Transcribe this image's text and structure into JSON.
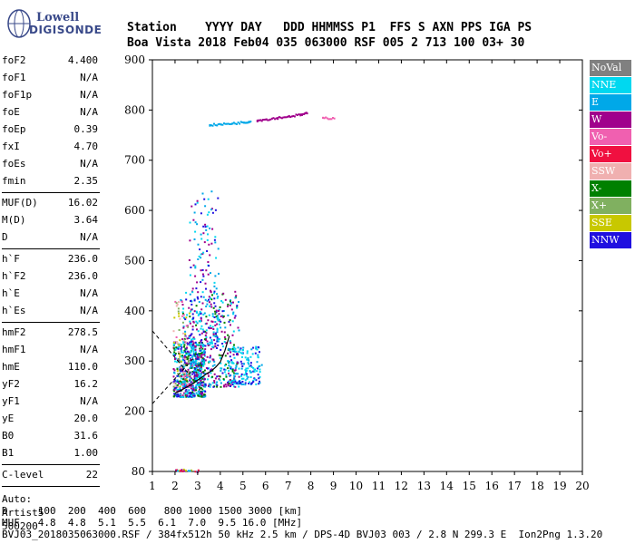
{
  "logo": {
    "line1": "Lowell",
    "line2": "DIGISONDE"
  },
  "header": {
    "line1": "Station    YYYY DAY   DDD HHMMSS P1  FFS S AXN PPS IGA PS",
    "line2": "Boa Vista 2018 Feb04 035 063000 RSF 005 2 713 100 03+ 30"
  },
  "params": [
    {
      "k": "foF2",
      "v": "4.400"
    },
    {
      "k": "foF1",
      "v": "N/A"
    },
    {
      "k": "foF1p",
      "v": "N/A"
    },
    {
      "k": "foE",
      "v": "N/A"
    },
    {
      "k": "foEp",
      "v": "0.39"
    },
    {
      "k": "fxI",
      "v": "4.70"
    },
    {
      "k": "foEs",
      "v": "N/A"
    },
    {
      "k": "fmin",
      "v": "2.35"
    },
    {
      "k": "MUF(D)",
      "v": "16.02",
      "sep": true
    },
    {
      "k": "M(D)",
      "v": "3.64"
    },
    {
      "k": "D",
      "v": "N/A"
    },
    {
      "k": "h`F",
      "v": "236.0",
      "sep": true
    },
    {
      "k": "h`F2",
      "v": "236.0"
    },
    {
      "k": "h`E",
      "v": "N/A"
    },
    {
      "k": "h`Es",
      "v": "N/A"
    },
    {
      "k": "hmF2",
      "v": "278.5",
      "sep": true
    },
    {
      "k": "hmF1",
      "v": "N/A"
    },
    {
      "k": "hmE",
      "v": "110.0"
    },
    {
      "k": "yF2",
      "v": "16.2"
    },
    {
      "k": "yF1",
      "v": "N/A"
    },
    {
      "k": "yE",
      "v": "20.0"
    },
    {
      "k": "B0",
      "v": "31.6"
    },
    {
      "k": "B1",
      "v": "1.00"
    },
    {
      "k": "C-level",
      "v": "22",
      "sep": true
    }
  ],
  "auto": {
    "line1": "Auto:",
    "line2": "Artist5",
    "line3": "500200"
  },
  "legend": [
    {
      "label": "NoVal",
      "color": "#808080"
    },
    {
      "label": "NNE",
      "color": "#00d8f0"
    },
    {
      "label": "E",
      "color": "#00a8e8"
    },
    {
      "label": "W",
      "color": "#a0008c"
    },
    {
      "label": "Vo-",
      "color": "#f060b0"
    },
    {
      "label": "Vo+",
      "color": "#f01040"
    },
    {
      "label": "SSW",
      "color": "#f0b0b0"
    },
    {
      "label": "X-",
      "color": "#008000"
    },
    {
      "label": "X+",
      "color": "#80b060"
    },
    {
      "label": "SSE",
      "color": "#c8c800"
    },
    {
      "label": "NNW",
      "color": "#2010e0"
    }
  ],
  "footer": {
    "line1": "D     100  200  400  600   800 1000 1500 3000 [km]",
    "line2": "MUF   4.8  4.8  5.1  5.5  6.1  7.0  9.5 16.0 [MHz]",
    "line3": "BVJ03_2018035063000.RSF / 384fx512h 50 kHz 2.5 km / DPS-4D BVJ03 003 / 2.8 N 299.3 E  Ion2Png 1.3.20"
  },
  "chart_data": {
    "type": "scatter",
    "xlim": [
      1,
      20
    ],
    "ylim": [
      80,
      900
    ],
    "x_ticks": [
      1,
      2,
      3,
      4,
      5,
      6,
      7,
      8,
      9,
      10,
      11,
      12,
      13,
      14,
      15,
      16,
      17,
      18,
      19,
      20
    ],
    "y_ticks": [
      80,
      200,
      300,
      400,
      500,
      600,
      700,
      800,
      900
    ],
    "trace": {
      "x": [
        2.0,
        2.2,
        2.4,
        2.6,
        2.8,
        3.0,
        3.2,
        3.4,
        3.6,
        3.8,
        4.0,
        4.2,
        4.4
      ],
      "y": [
        236,
        240,
        245,
        250,
        255,
        262,
        268,
        275,
        280,
        288,
        298,
        320,
        350
      ]
    },
    "series": [
      {
        "color_key": "E",
        "x": [
          3.5,
          4.0,
          4.5,
          5.0,
          5.3
        ],
        "y": [
          772,
          773,
          775,
          777,
          779
        ]
      },
      {
        "color_key": "W",
        "x": [
          5.6,
          6.0,
          6.5,
          7.0,
          7.5,
          7.8
        ],
        "y": [
          781,
          783,
          786,
          789,
          792,
          795
        ]
      },
      {
        "color_key": "Vo-",
        "x": [
          8.5,
          9.0
        ],
        "y": [
          786,
          785
        ]
      }
    ]
  }
}
